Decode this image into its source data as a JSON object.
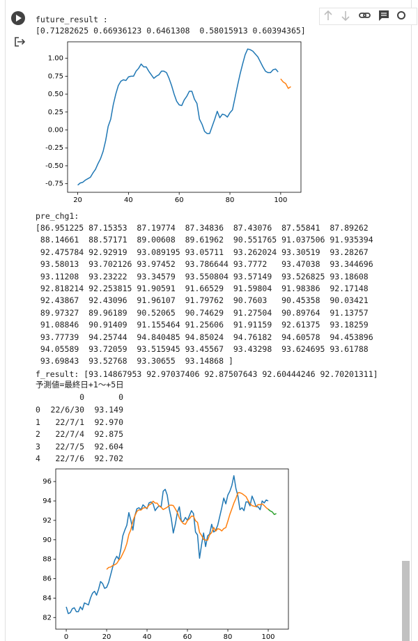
{
  "output": {
    "future_label": "future_result :",
    "future_text": "[0.71282625 0.66936123 0.6461308  0.58015913 0.60394365]",
    "pre_label": "pre_chg1:",
    "pre_lines": [
      "[86.951225 87.15353  87.19774  87.34836  87.43076  87.55841  87.89262",
      " 88.14661  88.57171  89.00608  89.61962  90.551765 91.037506 91.935394",
      " 92.475784 92.92919  93.089195 93.05711  93.262024 93.30519  93.28267",
      " 93.58013  93.702126 93.97452  93.786644 93.7772   93.47038  93.344696",
      " 93.11208  93.23222  93.34579  93.550804 93.57149  93.526825 93.18608",
      " 92.818214 92.253815 91.90591  91.66529  91.59804  91.98386  92.17148",
      " 92.43867  92.43096  91.96107  91.79762  90.7603   90.45358  90.03421",
      " 89.97327  89.96189  90.52065  90.74629  91.27504  90.89764  91.13757",
      " 91.08846  90.91409  91.155464 91.25606  91.91159  92.61375  93.18259",
      " 93.77739  94.25744  94.840485 94.85024  94.76182  94.60578  94.453896",
      " 94.05589  93.72059  93.515945 93.45567  93.43298  93.624695 93.61788",
      " 93.69843  93.52768  93.30655  93.14868 ]"
    ],
    "f_result_line": "f_result: [93.14867953 92.97037406 92.87507643 92.60444246 92.70201311]",
    "forecast_heading": "予測値=最終日+1～+5日",
    "table": {
      "columns": [
        "0",
        "0"
      ],
      "rows": [
        [
          "0",
          "22/6/30",
          "93.149"
        ],
        [
          "1",
          "22/7/1",
          "92.970"
        ],
        [
          "2",
          "22/7/4",
          "92.875"
        ],
        [
          "3",
          "22/7/5",
          "92.604"
        ],
        [
          "4",
          "22/7/6",
          "92.702"
        ]
      ]
    }
  },
  "chart_data": [
    {
      "type": "line",
      "xlim": [
        16,
        108
      ],
      "ylim": [
        -0.87,
        1.23
      ],
      "xticks": [
        20,
        40,
        60,
        80,
        100
      ],
      "yticks": [
        -0.75,
        {
          "value": -0.5,
          "label": "-0.50"
        },
        -0.25,
        {
          "value": 0,
          "label": "0.00"
        },
        0.25,
        {
          "value": 0.5,
          "label": "0.50"
        },
        0.75,
        {
          "value": 1,
          "label": "1.00"
        }
      ],
      "series": [
        {
          "color": "#1f77b4",
          "x": [
            20,
            21,
            22,
            23,
            24,
            25,
            26,
            27,
            28,
            29,
            30,
            31,
            32,
            33,
            34,
            35,
            36,
            37,
            38,
            39,
            40,
            41,
            42,
            43,
            44,
            45,
            46,
            47,
            48,
            49,
            50,
            51,
            52,
            53,
            54,
            55,
            56,
            57,
            58,
            59,
            60,
            61,
            62,
            63,
            64,
            65,
            66,
            67,
            68,
            69,
            70,
            71,
            72,
            73,
            74,
            75,
            76,
            77,
            78,
            79,
            80,
            81,
            82,
            83,
            84,
            85,
            86,
            87,
            88,
            89,
            90,
            91,
            92,
            93,
            94,
            95,
            96,
            97,
            98,
            99
          ],
          "values": [
            -0.77,
            -0.74,
            -0.73,
            -0.7,
            -0.68,
            -0.66,
            -0.6,
            -0.55,
            -0.47,
            -0.4,
            -0.3,
            -0.15,
            0.05,
            0.15,
            0.35,
            0.5,
            0.62,
            0.68,
            0.7,
            0.69,
            0.74,
            0.75,
            0.75,
            0.82,
            0.86,
            0.92,
            0.88,
            0.88,
            0.82,
            0.77,
            0.72,
            0.75,
            0.77,
            0.82,
            0.82,
            0.8,
            0.72,
            0.62,
            0.5,
            0.4,
            0.35,
            0.34,
            0.42,
            0.47,
            0.54,
            0.54,
            0.43,
            0.37,
            0.15,
            0.08,
            -0.02,
            -0.05,
            -0.05,
            0.05,
            0.15,
            0.26,
            0.17,
            0.22,
            0.21,
            0.18,
            0.24,
            0.28,
            0.45,
            0.62,
            0.78,
            0.92,
            1.05,
            1.13,
            1.12,
            1.1,
            1.06,
            1.02,
            0.95,
            0.88,
            0.82,
            0.8,
            0.8,
            0.84,
            0.85,
            0.81
          ]
        },
        {
          "color": "#ff7f0e",
          "x": [
            100,
            101,
            102,
            103,
            104
          ],
          "values": [
            0.71282625,
            0.66936123,
            0.6461308,
            0.58015913,
            0.60394365
          ]
        }
      ]
    },
    {
      "type": "line",
      "xlim": [
        -5.2,
        110
      ],
      "ylim": [
        80.8,
        97.3
      ],
      "xticks": [
        0,
        20,
        40,
        60,
        80,
        100
      ],
      "yticks": [
        82,
        84,
        86,
        88,
        90,
        92,
        94,
        96
      ],
      "series": [
        {
          "color": "#1f77b4",
          "x": [
            0,
            1,
            2,
            3,
            4,
            5,
            6,
            7,
            8,
            9,
            10,
            11,
            12,
            13,
            14,
            15,
            16,
            17,
            18,
            19,
            20,
            21,
            22,
            23,
            24,
            25,
            26,
            27,
            28,
            29,
            30,
            31,
            32,
            33,
            34,
            35,
            36,
            37,
            38,
            39,
            40,
            41,
            42,
            43,
            44,
            45,
            46,
            47,
            48,
            49,
            50,
            51,
            52,
            53,
            54,
            55,
            56,
            57,
            58,
            59,
            60,
            61,
            62,
            63,
            64,
            65,
            66,
            67,
            68,
            69,
            70,
            71,
            72,
            73,
            74,
            75,
            76,
            77,
            78,
            79,
            80,
            81,
            82,
            83,
            84,
            85,
            86,
            87,
            88,
            89,
            90,
            91,
            92,
            93,
            94,
            95,
            96,
            97,
            98,
            99,
            100
          ],
          "values": [
            83.1,
            82.4,
            82.5,
            82.9,
            83.0,
            82.6,
            82.6,
            83.1,
            82.8,
            83.5,
            83.4,
            83.3,
            84.0,
            84.5,
            84.7,
            84.3,
            84.9,
            85.7,
            85.5,
            85.0,
            85.1,
            85.6,
            86.4,
            87.2,
            87.9,
            88.3,
            88.0,
            89.0,
            90.4,
            91.0,
            91.5,
            92.8,
            92.0,
            91.0,
            92.5,
            93.2,
            93.3,
            93.1,
            93.6,
            93.4,
            93.2,
            93.8,
            93.9,
            93.7,
            93.0,
            93.3,
            93.5,
            93.4,
            95.0,
            95.2,
            94.6,
            93.2,
            92.2,
            90.7,
            91.6,
            92.8,
            93.4,
            91.9,
            91.9,
            92.3,
            92.0,
            92.5,
            93.0,
            92.7,
            90.8,
            90.5,
            88.1,
            89.5,
            90.7,
            89.3,
            90.4,
            90.6,
            91.6,
            90.8,
            91.0,
            91.5,
            92.4,
            93.3,
            94.3,
            93.7,
            94.6,
            95.0,
            95.6,
            96.6,
            95.3,
            94.5,
            93.1,
            93.3,
            93.0,
            93.9,
            93.9,
            93.5,
            94.5,
            94.0,
            93.4,
            93.4,
            93.1,
            94.0,
            93.8,
            94.1,
            94.0
          ]
        },
        {
          "color": "#ff7f0e",
          "x": [
            20,
            21,
            22,
            23,
            24,
            25,
            26,
            27,
            28,
            29,
            30,
            31,
            32,
            33,
            34,
            35,
            36,
            37,
            38,
            39,
            40,
            41,
            42,
            43,
            44,
            45,
            46,
            47,
            48,
            49,
            50,
            51,
            52,
            53,
            54,
            55,
            56,
            57,
            58,
            59,
            60,
            61,
            62,
            63,
            64,
            65,
            66,
            67,
            68,
            69,
            70,
            71,
            72,
            73,
            74,
            75,
            76,
            77,
            78,
            79,
            80,
            81,
            82,
            83,
            84,
            85,
            86,
            87,
            88,
            89,
            90,
            91,
            92,
            93,
            94,
            95,
            96,
            97,
            98,
            99,
            100
          ],
          "values": [
            86.951225,
            87.15353,
            87.19774,
            87.34836,
            87.43076,
            87.55841,
            87.89262,
            88.14661,
            88.57171,
            89.00608,
            89.61962,
            90.551765,
            91.037506,
            91.935394,
            92.475784,
            92.92919,
            93.089195,
            93.05711,
            93.262024,
            93.30519,
            93.28267,
            93.58013,
            93.702126,
            93.97452,
            93.786644,
            93.7772,
            93.47038,
            93.344696,
            93.11208,
            93.23222,
            93.34579,
            93.550804,
            93.57149,
            93.526825,
            93.18608,
            92.818214,
            92.253815,
            91.90591,
            91.66529,
            91.59804,
            91.98386,
            92.17148,
            92.43867,
            92.43096,
            91.96107,
            91.79762,
            90.7603,
            90.45358,
            90.03421,
            89.97327,
            89.96189,
            90.52065,
            90.74629,
            91.27504,
            90.89764,
            91.13757,
            91.08846,
            90.91409,
            91.155464,
            91.25606,
            91.91159,
            92.61375,
            93.18259,
            93.77739,
            94.25744,
            94.840485,
            94.85024,
            94.76182,
            94.60578,
            94.453896,
            94.05589,
            93.72059,
            93.515945,
            93.45567,
            93.43298,
            93.624695,
            93.61788,
            93.69843,
            93.52768,
            93.30655,
            93.14868
          ]
        },
        {
          "color": "#2ca02c",
          "x": [
            100,
            101,
            102,
            103,
            104
          ],
          "values": [
            93.14867953,
            92.97037406,
            92.87507643,
            92.60444246,
            92.70201311
          ]
        }
      ]
    }
  ]
}
